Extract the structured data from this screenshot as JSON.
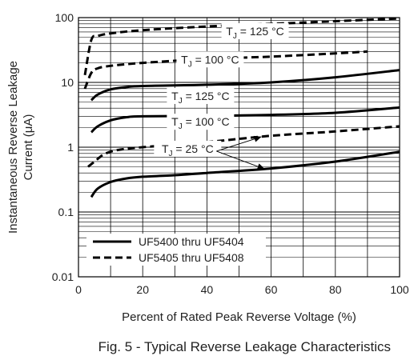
{
  "caption": "Fig. 5 - Typical Reverse Leakage Characteristics",
  "chart_data": {
    "type": "line",
    "xlabel": "Percent of Rated Peak Reverse Voltage (%)",
    "ylabel_line1": "Instantaneous Reverse Leakage",
    "ylabel_line2": "Current (μA)",
    "xlim": [
      0,
      100
    ],
    "ylim": [
      0.01,
      100
    ],
    "y_scale": "log",
    "grid": true,
    "x_ticks": [
      "0",
      "20",
      "40",
      "60",
      "80",
      "100"
    ],
    "y_ticks": [
      "0.01",
      "0.1",
      "1",
      "10",
      "100"
    ],
    "legend": [
      {
        "label": "UF5400 thru UF5404",
        "style": "solid"
      },
      {
        "label": "UF5405 thru UF5408",
        "style": "dashed"
      }
    ],
    "annotations": [
      {
        "label": "TJ = 125 °C",
        "text": "T",
        "sub": "J",
        "rest": " = 125 °C",
        "x": 55,
        "y": 60
      },
      {
        "label": "TJ = 100 °C",
        "text": "T",
        "sub": "J",
        "rest": " = 100 °C",
        "x": 41,
        "y": 22
      },
      {
        "label": "TJ = 125 °C",
        "text": "T",
        "sub": "J",
        "rest": " = 125 °C",
        "x": 38,
        "y": 6
      },
      {
        "label": "TJ = 100 °C",
        "text": "T",
        "sub": "J",
        "rest": " = 100 °C",
        "x": 38,
        "y": 2.4
      },
      {
        "label": "TJ = 25 °C",
        "text": "T",
        "sub": "J",
        "rest": " = 25 °C",
        "x": 34,
        "y": 0.92
      }
    ],
    "series": [
      {
        "style": "dashed",
        "points": [
          [
            2,
            13
          ],
          [
            4,
            45
          ],
          [
            6,
            52
          ],
          [
            10,
            57
          ],
          [
            20,
            64
          ],
          [
            40,
            73
          ],
          [
            60,
            80
          ],
          [
            80,
            88
          ],
          [
            100,
            97
          ]
        ]
      },
      {
        "style": "dashed",
        "points": [
          [
            2,
            8
          ],
          [
            4,
            14
          ],
          [
            6,
            16.5
          ],
          [
            10,
            18
          ],
          [
            20,
            20
          ],
          [
            40,
            23
          ],
          [
            60,
            25
          ],
          [
            80,
            28
          ],
          [
            90,
            30
          ]
        ]
      },
      {
        "style": "solid",
        "points": [
          [
            4,
            5.3
          ],
          [
            6,
            6.5
          ],
          [
            10,
            7.8
          ],
          [
            15,
            8.5
          ],
          [
            20,
            8.8
          ],
          [
            40,
            9.2
          ],
          [
            60,
            10
          ],
          [
            80,
            12
          ],
          [
            100,
            15.5
          ]
        ]
      },
      {
        "style": "solid",
        "points": [
          [
            4,
            1.7
          ],
          [
            6,
            2.1
          ],
          [
            10,
            2.6
          ],
          [
            15,
            2.9
          ],
          [
            20,
            3
          ],
          [
            40,
            3.05
          ],
          [
            60,
            3.15
          ],
          [
            80,
            3.4
          ],
          [
            100,
            4.1
          ]
        ]
      },
      {
        "style": "dashed",
        "points": [
          [
            3,
            0.5
          ],
          [
            5,
            0.6
          ],
          [
            8,
            0.78
          ],
          [
            12,
            0.9
          ],
          [
            20,
            1.0
          ],
          [
            40,
            1.2
          ],
          [
            60,
            1.5
          ],
          [
            80,
            1.75
          ],
          [
            100,
            2.1
          ]
        ]
      },
      {
        "style": "solid",
        "points": [
          [
            4,
            0.17
          ],
          [
            6,
            0.23
          ],
          [
            10,
            0.29
          ],
          [
            15,
            0.33
          ],
          [
            20,
            0.35
          ],
          [
            30,
            0.37
          ],
          [
            40,
            0.4
          ],
          [
            60,
            0.47
          ],
          [
            80,
            0.6
          ],
          [
            100,
            0.85
          ]
        ]
      }
    ]
  }
}
